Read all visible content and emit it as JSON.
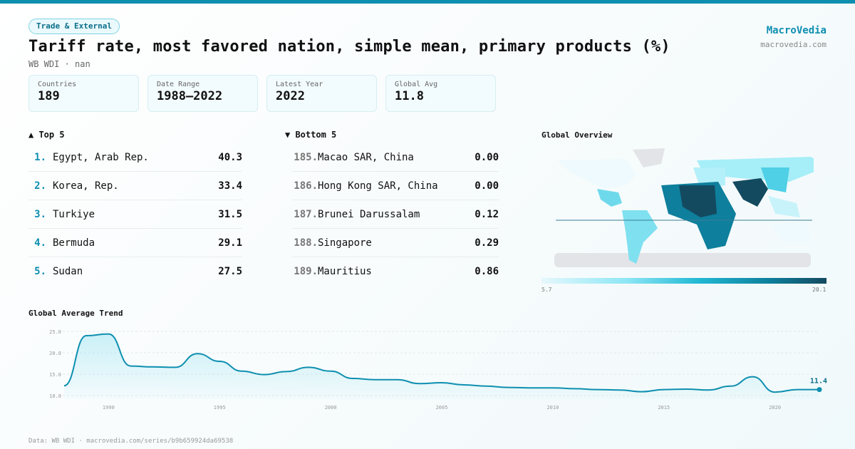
{
  "header": {
    "badge": "Trade & External",
    "title": "Tariff rate, most favored nation, simple mean, primary products (%)",
    "subtitle": "WB WDI · nan",
    "brand": "MacroVedia",
    "brand_url": "macrovedia.com"
  },
  "stats": [
    {
      "label": "Countries",
      "value": "189"
    },
    {
      "label": "Date Range",
      "value": "1988–2022"
    },
    {
      "label": "Latest Year",
      "value": "2022"
    },
    {
      "label": "Global Avg",
      "value": "11.8"
    }
  ],
  "top5": {
    "title": "▲ Top 5",
    "items": [
      {
        "rank": "1.",
        "name": "Egypt, Arab Rep.",
        "value": "40.3"
      },
      {
        "rank": "2.",
        "name": "Korea, Rep.",
        "value": "33.4"
      },
      {
        "rank": "3.",
        "name": "Turkiye",
        "value": "31.5"
      },
      {
        "rank": "4.",
        "name": "Bermuda",
        "value": "29.1"
      },
      {
        "rank": "5.",
        "name": "Sudan",
        "value": "27.5"
      }
    ]
  },
  "bottom5": {
    "title": "▼ Bottom 5",
    "items": [
      {
        "rank": "185.",
        "name": "Macao SAR, China",
        "value": "0.00"
      },
      {
        "rank": "186.",
        "name": "Hong Kong SAR, China",
        "value": "0.00"
      },
      {
        "rank": "187.",
        "name": "Brunei Darussalam",
        "value": "0.12"
      },
      {
        "rank": "188.",
        "name": "Singapore",
        "value": "0.29"
      },
      {
        "rank": "189.",
        "name": "Mauritius",
        "value": "0.86"
      }
    ]
  },
  "map": {
    "title": "Global Overview",
    "legend_min": "5.7",
    "legend_max": "20.1",
    "colors": {
      "low": "#e6f8fc",
      "mid": "#22b9d4",
      "high": "#134a60",
      "nodata": "#e2e4e7"
    }
  },
  "chart_data": {
    "type": "area",
    "title": "Global Average Trend",
    "x": [
      1988,
      1989,
      1990,
      1991,
      1992,
      1993,
      1994,
      1995,
      1996,
      1997,
      1998,
      1999,
      2000,
      2001,
      2002,
      2003,
      2004,
      2005,
      2006,
      2007,
      2008,
      2009,
      2010,
      2011,
      2012,
      2013,
      2014,
      2015,
      2016,
      2017,
      2018,
      2019,
      2020,
      2021,
      2022
    ],
    "values": [
      12.3,
      24.0,
      24.4,
      16.9,
      16.7,
      16.6,
      19.8,
      18.0,
      15.7,
      14.9,
      15.6,
      16.6,
      15.7,
      14.0,
      13.7,
      13.7,
      12.8,
      13.0,
      12.5,
      12.2,
      11.9,
      11.8,
      11.8,
      11.6,
      11.4,
      11.3,
      10.9,
      11.4,
      11.5,
      11.3,
      12.2,
      14.4,
      10.8,
      11.4,
      11.4
    ],
    "xlim": [
      1988,
      2022
    ],
    "ylim": [
      10,
      25
    ],
    "yticks": [
      "10.0",
      "15.0",
      "20.0",
      "25.0"
    ],
    "xticks": [
      "1990",
      "1995",
      "2000",
      "2005",
      "2010",
      "2015",
      "2020"
    ],
    "last_label": "11.4",
    "grid": true,
    "color": "#0e8fb0"
  },
  "footer": "Data: WB WDI · macrovedia.com/series/b9b659924da69538"
}
